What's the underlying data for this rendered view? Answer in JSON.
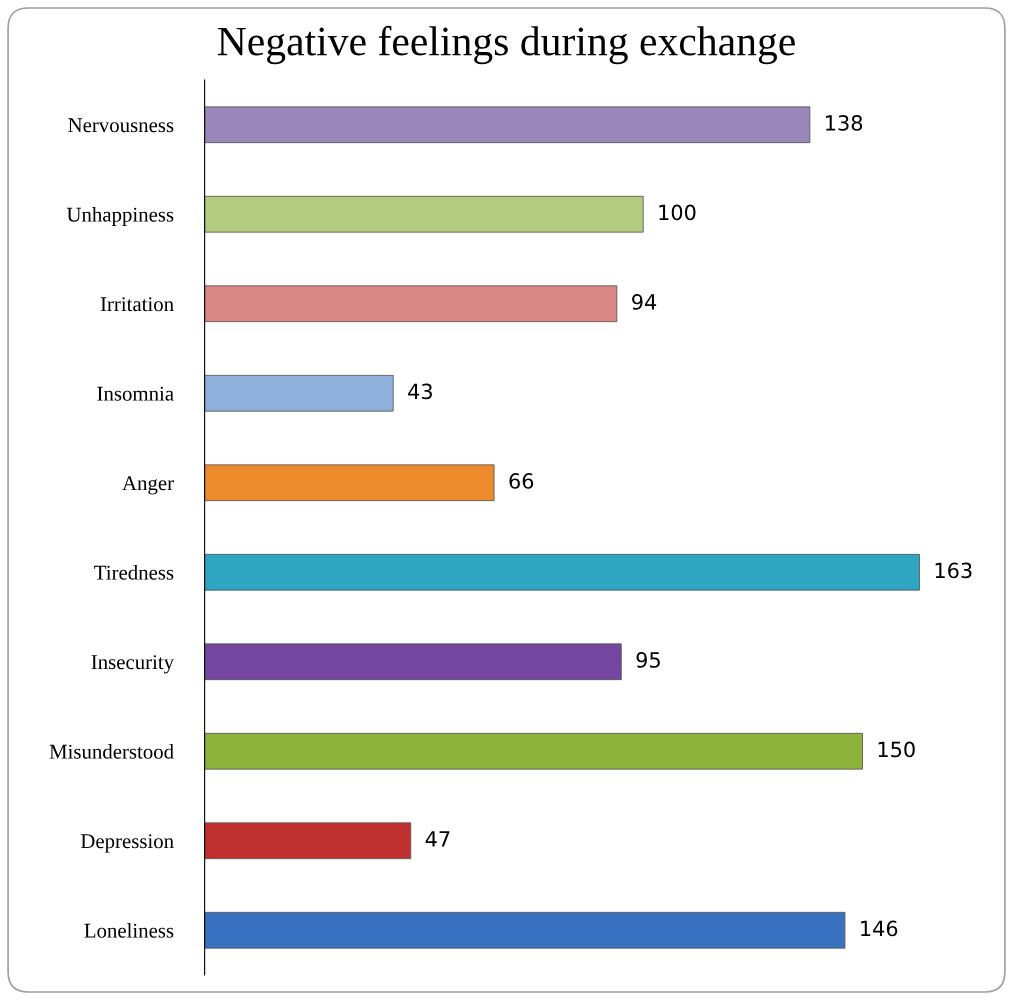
{
  "chart_data": {
    "type": "bar",
    "orientation": "horizontal",
    "title": "Negative feelings during exchange",
    "categories": [
      "Nervousness",
      "Unhappiness",
      "Irritation",
      "Insomnia",
      "Anger",
      "Tiredness",
      "Insecurity",
      "Misunderstood",
      "Depression",
      "Loneliness"
    ],
    "values": [
      138,
      100,
      94,
      43,
      66,
      163,
      95,
      150,
      47,
      146
    ],
    "colors": [
      "#9a86b8",
      "#b3cb7f",
      "#d98886",
      "#8fb0dc",
      "#ed8a2c",
      "#2fa6c1",
      "#7347a0",
      "#8db33a",
      "#c0302f",
      "#3a72c2"
    ],
    "data_labels": true,
    "grid": false,
    "legend": false,
    "tick_labels": "y"
  }
}
